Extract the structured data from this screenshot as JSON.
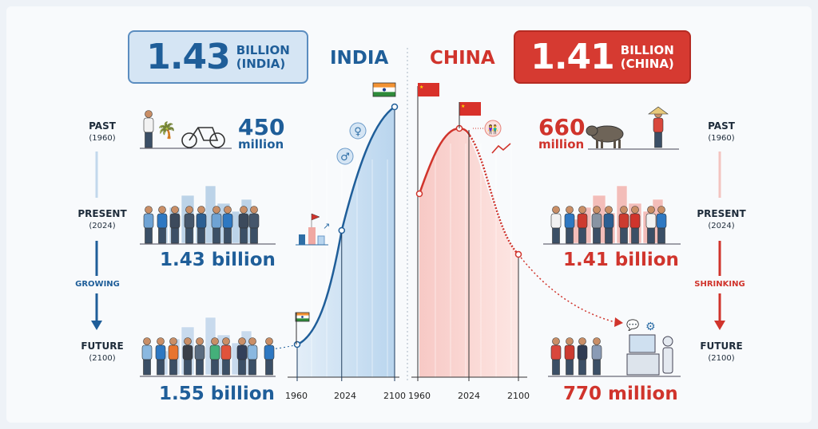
{
  "india": {
    "title": "INDIA",
    "headline_value": "1.43",
    "headline_unit_1": "BILLION",
    "headline_unit_2": "(INDIA)",
    "stages": [
      {
        "label": "PAST",
        "year": "(1960)",
        "value": "450",
        "unit": "million"
      },
      {
        "label": "PRESENT",
        "year": "(2024)",
        "value": "1.43 billion"
      },
      {
        "label": "FUTURE",
        "year": "(2100)",
        "value": "1.55 billion"
      }
    ],
    "trend": "GROWING",
    "color": "#1f5e99"
  },
  "china": {
    "title": "CHINA",
    "headline_value": "1.41",
    "headline_unit_1": "BILLION",
    "headline_unit_2": "(CHINA)",
    "stages": [
      {
        "label": "PAST",
        "year": "(1960)",
        "value": "660",
        "unit": "million"
      },
      {
        "label": "PRESENT",
        "year": "(2024)",
        "value": "1.41 billion"
      },
      {
        "label": "FUTURE",
        "year": "(2100)",
        "value": "770 million"
      }
    ],
    "trend": "SHRINKING",
    "color": "#d0342c"
  },
  "chart_data": [
    {
      "type": "area",
      "name": "India",
      "x_ticks": [
        "1960",
        "2024",
        "2100"
      ],
      "x": [
        1960,
        2024,
        2100
      ],
      "y": [
        450,
        1430,
        1550
      ],
      "unit": "million",
      "color": "#1f5e99"
    },
    {
      "type": "area",
      "name": "China",
      "x_ticks": [
        "1960",
        "2024",
        "2100"
      ],
      "x": [
        1960,
        2024,
        2100
      ],
      "y": [
        660,
        1410,
        770
      ],
      "unit": "million",
      "color": "#d0342c"
    }
  ]
}
